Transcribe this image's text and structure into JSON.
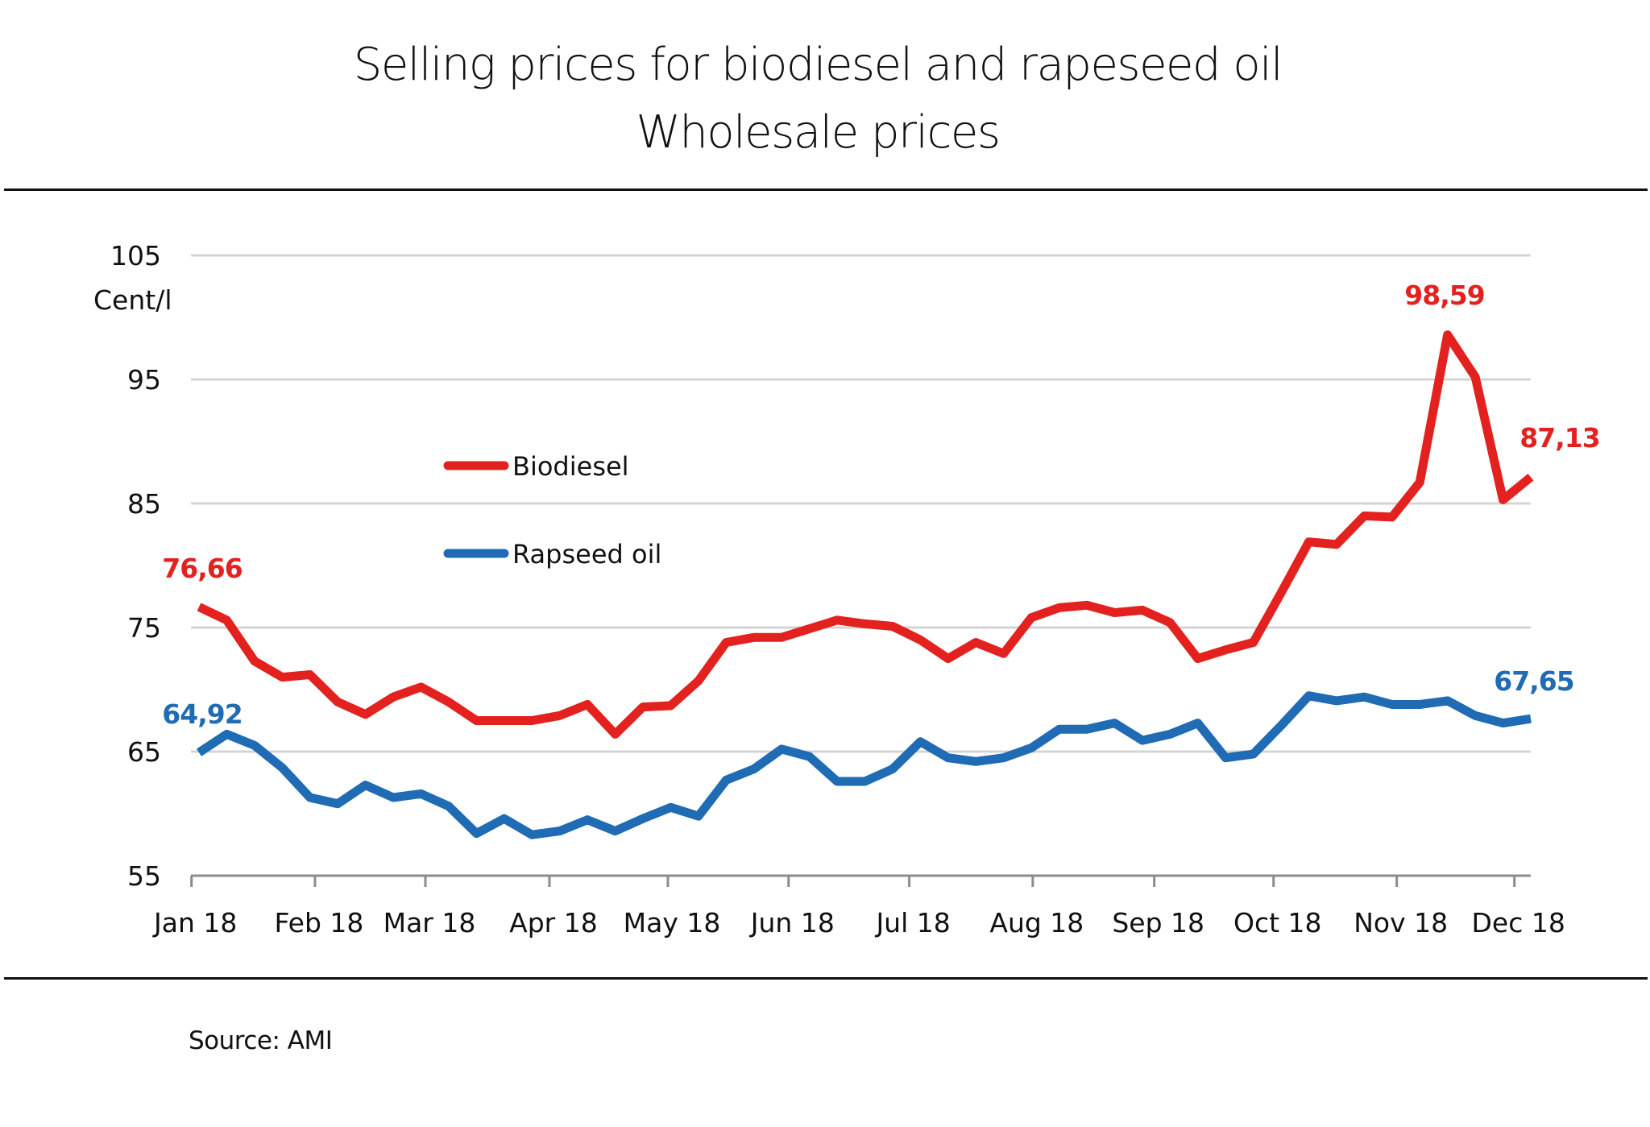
{
  "title": {
    "line1": "Selling prices for biodiesel and rapeseed oil",
    "line2": "Wholesale prices"
  },
  "source": "Source: AMI",
  "chart_data": {
    "type": "line",
    "title": "Selling prices for biodiesel and rapeseed oil",
    "subtitle": "Wholesale prices",
    "xlabel": "",
    "ylabel": "Cent/l",
    "ylim": [
      55,
      105
    ],
    "yticks": [
      55,
      65,
      75,
      85,
      95,
      105
    ],
    "grid": true,
    "x_unit": "week index (weekly observations, Jan 2018 – Dec 2018)",
    "xlim": [
      -0.29,
      48
    ],
    "xticks": [
      {
        "label": "Jan 18",
        "pos": -0.27
      },
      {
        "label": "Feb 18",
        "pos": 4.18
      },
      {
        "label": "Mar 18",
        "pos": 8.16
      },
      {
        "label": "Apr 18",
        "pos": 12.63
      },
      {
        "label": "May 18",
        "pos": 16.9
      },
      {
        "label": "Jun 18",
        "pos": 21.25
      },
      {
        "label": "Jul 18",
        "pos": 25.6
      },
      {
        "label": "Aug 18",
        "pos": 30.05
      },
      {
        "label": "Sep 18",
        "pos": 34.43
      },
      {
        "label": "Oct 18",
        "pos": 38.73
      },
      {
        "label": "Nov 18",
        "pos": 43.17
      },
      {
        "label": "Dec 18",
        "pos": 47.41
      }
    ],
    "legend_position": "upper-left inside plot",
    "series": [
      {
        "name": "Biodiesel",
        "color": "#e3221f",
        "values": [
          76.66,
          75.6,
          72.3,
          71.0,
          71.2,
          69.0,
          68.0,
          69.4,
          70.2,
          69.0,
          67.5,
          67.5,
          67.5,
          67.9,
          68.8,
          66.4,
          68.6,
          68.7,
          70.7,
          73.8,
          74.2,
          74.2,
          74.9,
          75.6,
          75.3,
          75.1,
          74.0,
          72.5,
          73.8,
          72.9,
          75.8,
          76.6,
          76.8,
          76.2,
          76.4,
          75.4,
          72.5,
          73.2,
          73.8,
          77.8,
          81.9,
          81.7,
          84.0,
          83.9,
          86.7,
          98.59,
          95.2,
          85.3,
          87.13
        ],
        "annotations": [
          {
            "index": 0,
            "text": "76,66"
          },
          {
            "index": 45,
            "text": "98,59"
          },
          {
            "index": 48,
            "text": "87,13"
          }
        ]
      },
      {
        "name": "Rapseed oil",
        "color": "#1f6bb4",
        "values": [
          64.92,
          66.4,
          65.5,
          63.7,
          61.3,
          60.8,
          62.3,
          61.3,
          61.6,
          60.6,
          58.4,
          59.6,
          58.3,
          58.6,
          59.5,
          58.6,
          59.6,
          60.5,
          59.8,
          62.7,
          63.6,
          65.2,
          64.6,
          62.6,
          62.6,
          63.6,
          65.8,
          64.5,
          64.2,
          64.5,
          65.3,
          66.8,
          66.8,
          67.3,
          65.9,
          66.4,
          67.3,
          64.5,
          64.8,
          67.1,
          69.5,
          69.1,
          69.4,
          68.8,
          68.8,
          69.1,
          67.9,
          67.3,
          67.65
        ],
        "annotations": [
          {
            "index": 0,
            "text": "64,92"
          },
          {
            "index": 48,
            "text": "67,65"
          }
        ]
      }
    ]
  }
}
